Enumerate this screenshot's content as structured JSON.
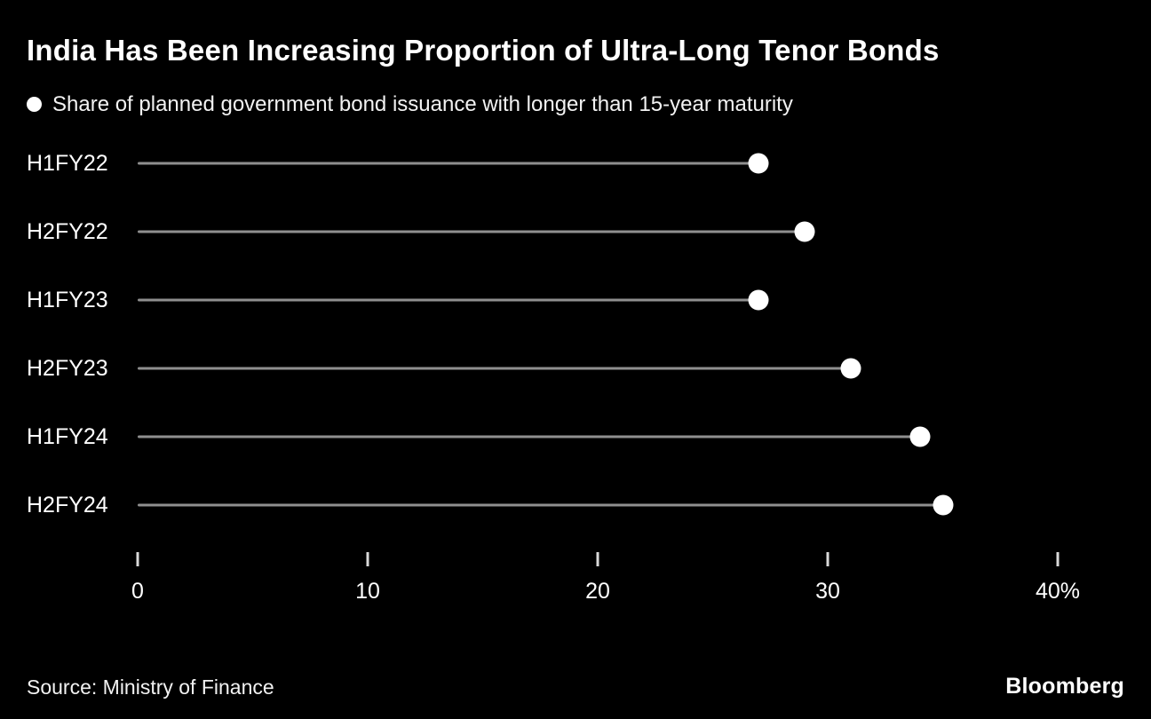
{
  "title": "India Has Been Increasing Proportion of Ultra-Long Tenor Bonds",
  "legend": {
    "marker": "dot",
    "label": "Share of planned government bond issuance with longer than 15-year maturity"
  },
  "source": "Source: Ministry of Finance",
  "brand": "Bloomberg",
  "colors": {
    "background": "#000000",
    "text": "#ffffff",
    "stem": "#8f8f8f",
    "dot": "#ffffff",
    "tick": "#d9d9d9"
  },
  "chart_data": {
    "type": "lollipop",
    "orientation": "horizontal",
    "categories": [
      "H1FY22",
      "H2FY22",
      "H1FY23",
      "H2FY23",
      "H1FY24",
      "H2FY24"
    ],
    "values": [
      27,
      29,
      27,
      31,
      34,
      35
    ],
    "title": "India Has Been Increasing Proportion of Ultra-Long Tenor Bonds",
    "legend_label": "Share of planned government bond issuance with longer than 15-year maturity",
    "xlabel": "",
    "ylabel": "",
    "xlim": [
      0,
      40
    ],
    "xticks": [
      0,
      10,
      20,
      30,
      40
    ],
    "xtick_labels": [
      "0",
      "10",
      "20",
      "30",
      "40%"
    ],
    "grid": false,
    "legend_position": "top-left"
  }
}
